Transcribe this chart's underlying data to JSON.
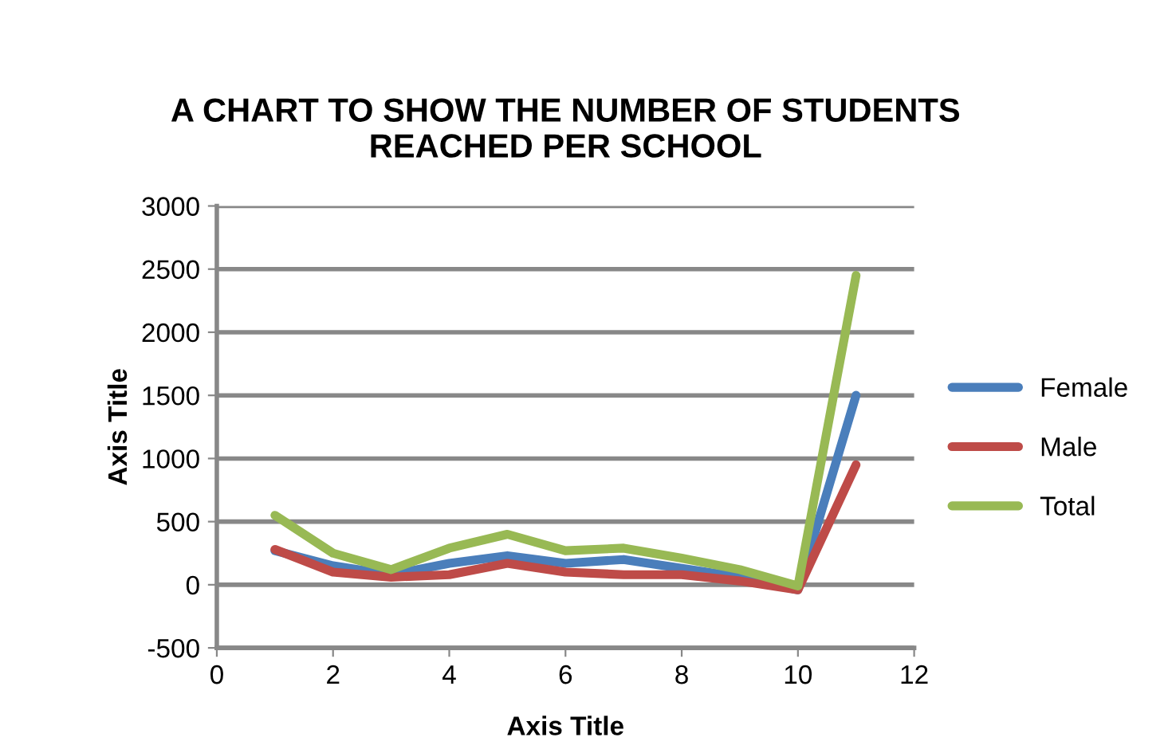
{
  "chart_data": {
    "type": "line",
    "title": "A CHART TO SHOW THE NUMBER OF STUDENTS\nREACHED PER SCHOOL",
    "xlabel": "Axis Title",
    "ylabel": "Axis Title",
    "x": [
      1,
      2,
      3,
      4,
      5,
      6,
      7,
      8,
      9,
      10,
      11
    ],
    "series": [
      {
        "name": "Female",
        "color": "#4a7ebb",
        "values": [
          270,
          150,
          80,
          170,
          230,
          170,
          200,
          130,
          60,
          -40,
          1500
        ]
      },
      {
        "name": "Male",
        "color": "#be4b48",
        "values": [
          280,
          100,
          60,
          80,
          170,
          100,
          80,
          80,
          30,
          -40,
          950
        ]
      },
      {
        "name": "Total",
        "color": "#98b954",
        "values": [
          550,
          250,
          120,
          290,
          400,
          270,
          290,
          210,
          120,
          -10,
          2450
        ]
      }
    ],
    "xlim": [
      0,
      12
    ],
    "xticks": [
      0,
      2,
      4,
      6,
      8,
      10,
      12
    ],
    "ylim": [
      -500,
      3000
    ],
    "yticks": [
      -500,
      0,
      500,
      1000,
      1500,
      2000,
      2500,
      3000
    ],
    "grid": "y",
    "legend": "right",
    "marker": "none",
    "line_style": "solid"
  }
}
